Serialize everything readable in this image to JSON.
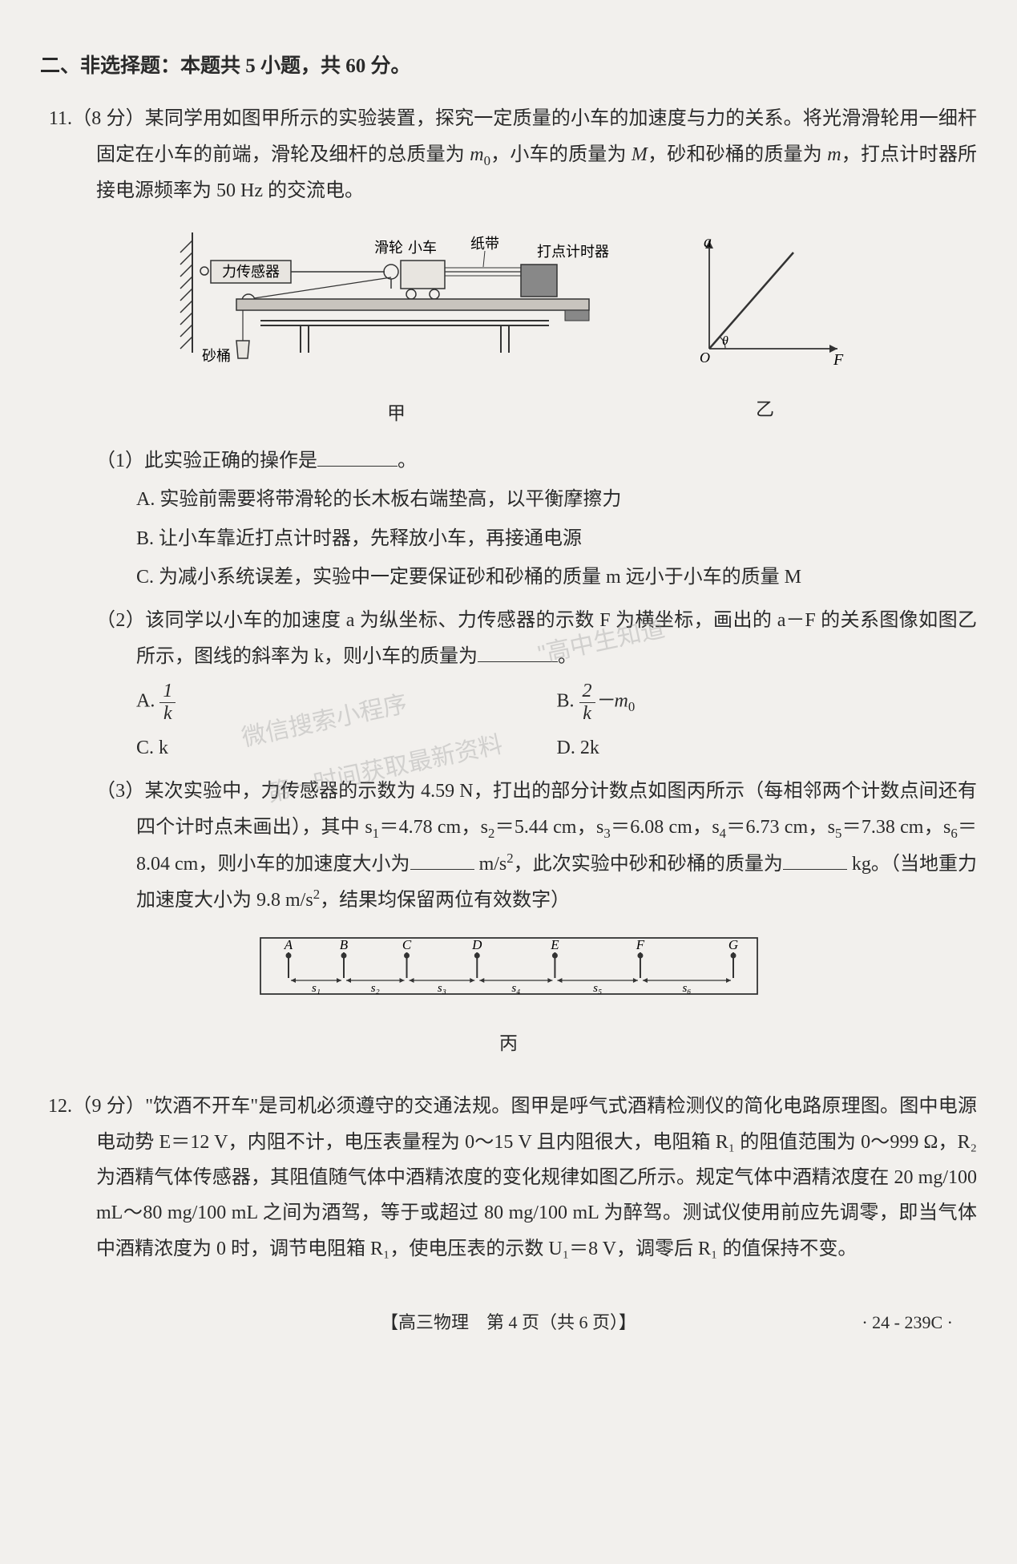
{
  "section_header": "二、非选择题：本题共 5 小题，共 60 分。",
  "q11": {
    "number": "11.",
    "points": "（8 分）",
    "text_parts": [
      "某同学用如图甲所示的实验装置，探究一定质量的小车的加速度与力的关系。将光滑滑轮用一细杆固定在小车的前端，滑轮及细杆的总质量为 ",
      "，小车的质量为 ",
      "，砂和砂桶的质量为 ",
      "，打点计时器所接电源频率为 50 Hz 的交流电。"
    ],
    "vars": {
      "m0": "m",
      "m0_sub": "0",
      "M": "M",
      "m": "m"
    },
    "fig_labels": {
      "force_sensor": "力传感器",
      "pulley": "滑轮",
      "cart": "小车",
      "tape": "纸带",
      "timer": "打点计时器",
      "bucket": "砂桶",
      "caption1": "甲",
      "caption2": "乙",
      "y_axis": "a",
      "x_axis": "F",
      "origin": "O",
      "theta": "θ"
    },
    "sub1": {
      "label": "（1）",
      "text": "此实验正确的操作是",
      "period": "。",
      "A": "A. 实验前需要将带滑轮的长木板右端垫高，以平衡摩擦力",
      "B": "B. 让小车靠近打点计时器，先释放小车，再接通电源",
      "C": "C. 为减小系统误差，实验中一定要保证砂和砂桶的质量 m 远小于小车的质量 M"
    },
    "sub2": {
      "label": "（2）",
      "text_parts": [
        "该同学以小车的加速度 a 为纵坐标、力传感器的示数 F 为横坐标，画出的 a－F 的关系图像如图乙所示，图线的斜率为 k，则小车的质量为",
        "。"
      ],
      "A_label": "A.",
      "A_num": "1",
      "A_den": "k",
      "B_label": "B.",
      "B_num": "2",
      "B_den": "k",
      "B_suffix": "－m",
      "B_sub": "0",
      "C": "C. k",
      "D": "D. 2k"
    },
    "sub3": {
      "label": "（3）",
      "text_parts": [
        "某次实验中，力传感器的示数为 4.59 N，打出的部分计数点如图丙所示（每相邻两个计数点间还有四个计时点未画出），其中 s",
        "＝4.78 cm，s",
        "＝5.44 cm，s",
        "＝6.08 cm，s",
        "＝6.73 cm，s",
        "＝7.38 cm，s",
        "＝8.04 cm，则小车的加速度大小为",
        " m/s",
        "，此次实验中砂和砂桶的质量为",
        " kg。（当地重力加速度大小为 9.8 m/s",
        "，结果均保留两位有效数字）"
      ],
      "subs": [
        "1",
        "2",
        "3",
        "4",
        "5",
        "6"
      ],
      "sup": "2"
    },
    "fig3": {
      "points": [
        "A",
        "B",
        "C",
        "D",
        "E",
        "F",
        "G"
      ],
      "segments": [
        "s₁",
        "s₂",
        "s₃",
        "s₄",
        "s₅",
        "s₆"
      ],
      "caption": "丙",
      "s_values": [
        4.78,
        5.44,
        6.08,
        6.73,
        7.38,
        8.04
      ]
    }
  },
  "q12": {
    "number": "12.",
    "points": "（9 分）",
    "text": "\"饮酒不开车\"是司机必须遵守的交通法规。图甲是呼气式酒精检测仪的简化电路原理图。图中电源电动势 E＝12 V，内阻不计，电压表量程为 0～15 V 且内阻很大，电阻箱 R₁ 的阻值范围为 0～999 Ω，R₂ 为酒精气体传感器，其阻值随气体中酒精浓度的变化规律如图乙所示。规定气体中酒精浓度在 20 mg/100 mL～80 mg/100 mL 之间为酒驾，等于或超过 80 mg/100 mL 为醉驾。测试仪使用前应先调零，即当气体中酒精浓度为 0 时，调节电阻箱 R₁，使电压表的示数 U₁＝8 V，调零后 R₁ 的值保持不变。"
  },
  "footer": {
    "center": "【高三物理　第 4 页（共 6 页）】",
    "right": "· 24 - 239C ·"
  },
  "watermarks": {
    "w1": "\"高中生知道\"",
    "w2": "微信搜索小程序",
    "w3": "第一时间获取最新资料"
  },
  "colors": {
    "bg": "#f2f0ed",
    "text": "#2a2a2a",
    "diagram_bg": "#e8e5e0",
    "diagram_stroke": "#333333",
    "watermark": "rgba(150,150,150,0.35)"
  }
}
